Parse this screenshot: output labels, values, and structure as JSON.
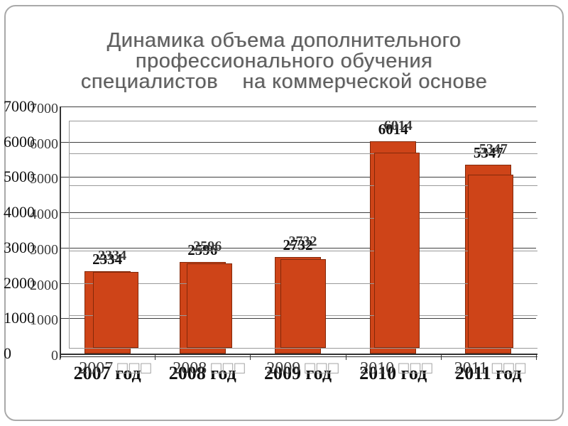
{
  "slide": {
    "title_lines": [
      "Динамика объема дополнительного",
      "профессионального обучения",
      "специалистов    на коммерческой основе"
    ]
  },
  "chart_data": {
    "type": "bar",
    "title": "Динамика объема дополнительного профессионального обучения специалистов на коммерческой основе",
    "categories": [
      "2007 год",
      "2008 год",
      "2009 год",
      "2010 год",
      "2011 год"
    ],
    "categories_ghost": [
      "2007 □□□",
      "2008 □□□",
      "2009 □□□",
      "2010 □□□",
      "2011 □□□"
    ],
    "values": [
      2334,
      2596,
      2732,
      6014,
      5347
    ],
    "value_labels": [
      "2334",
      "2596",
      "2732",
      "6014",
      "5347"
    ],
    "xlabel": "",
    "ylabel": "",
    "ylim": [
      0,
      7000
    ],
    "ytick_step": 1000,
    "yticks": [
      "0",
      "1000",
      "2000",
      "3000",
      "4000",
      "5000",
      "6000",
      "7000"
    ],
    "grid": true,
    "legend": "none",
    "render_glitch": "chart drawn twice with slight offset; ghost copy shows missing-glyph boxes for Cyrillic"
  },
  "colors": {
    "bar": "#CE4418",
    "bar_edge": "rgba(70,20,0,0.55)",
    "grid_front": "#3f3f3f",
    "grid_ghost": "#999999",
    "axis": "#333333",
    "text": "#111111",
    "ghost_text": "#3c3c3c",
    "tofu": "#9a9a9a",
    "title": "#5e5e5e",
    "border": "#a9a9a9"
  }
}
